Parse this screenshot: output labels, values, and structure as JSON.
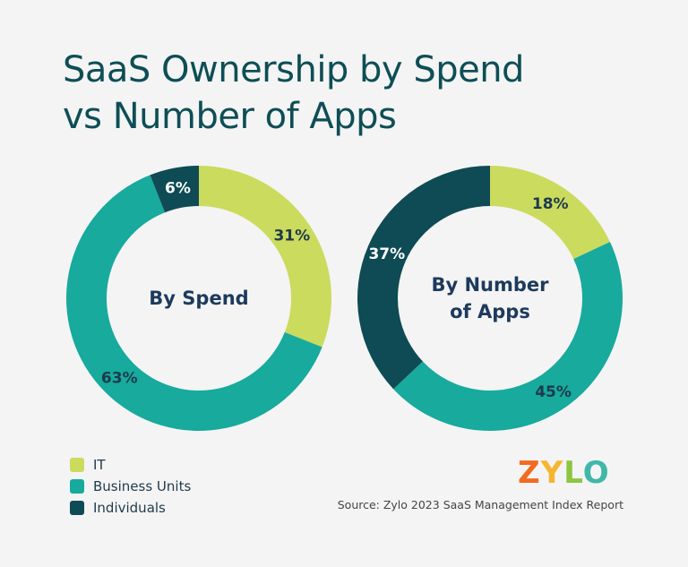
{
  "title_line1": "SaaS Ownership by Spend",
  "title_line2": "vs Number of Apps",
  "legend": [
    {
      "label": "IT",
      "color": "#cbdb5e"
    },
    {
      "label": "Business Units",
      "color": "#17aa9d"
    },
    {
      "label": "Individuals",
      "color": "#0e4b54"
    }
  ],
  "logo": {
    "text": "ZYLO",
    "colors": [
      "#f26b21",
      "#f6b531",
      "#8cc63f",
      "#3fb8a8"
    ]
  },
  "source": "Source: Zylo 2023 SaaS Management Index Report",
  "chart_data": [
    {
      "type": "pie",
      "center_label": [
        "By Spend"
      ],
      "categories": [
        "IT",
        "Business Units",
        "Individuals"
      ],
      "values": [
        31,
        63,
        6
      ],
      "labels": [
        "31%",
        "63%",
        "6%"
      ]
    },
    {
      "type": "pie",
      "center_label": [
        "By Number",
        "of Apps"
      ],
      "categories": [
        "IT",
        "Business Units",
        "Individuals"
      ],
      "values": [
        18,
        45,
        37
      ],
      "labels": [
        "18%",
        "45%",
        "37%"
      ]
    }
  ]
}
